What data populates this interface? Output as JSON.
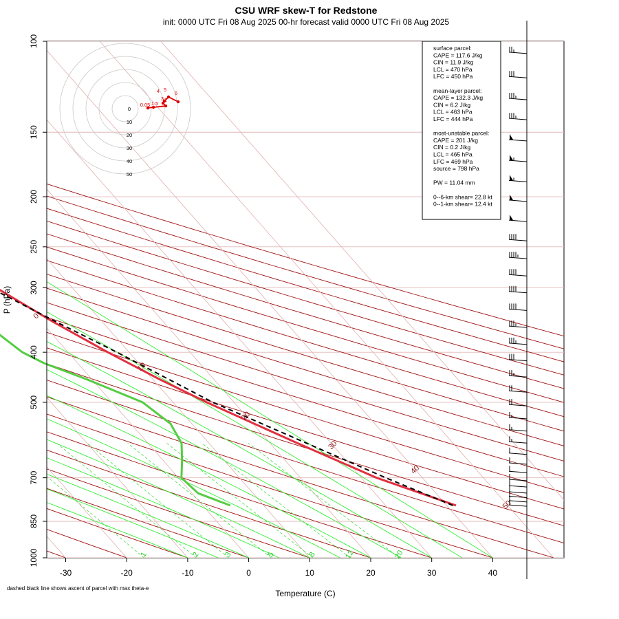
{
  "title": "CSU WRF skew-T for Redstone",
  "subtitle": "init: 0000 UTC Fri 08 Aug 2025     00-hr forecast valid 0000 UTC Fri 08 Aug 2025",
  "footnote": "dashed black line shows ascent of parcel with max theta-e",
  "chart_data": {
    "type": "line",
    "diagram": "skew-T log-P",
    "xlabel": "Temperature (C)",
    "ylabel": "P (hPa)",
    "x_ticks": [
      -30,
      -20,
      -10,
      0,
      10,
      20,
      30,
      40
    ],
    "y_ticks": [
      100,
      150,
      200,
      250,
      300,
      400,
      500,
      700,
      850,
      1000
    ],
    "xlim": [
      -33,
      46
    ],
    "ylim": [
      1000,
      100
    ],
    "y_scale": "log",
    "isotherm_labels": [
      -10,
      0,
      10,
      20,
      30,
      40,
      50
    ],
    "mixing_ratio_labels": [
      1,
      2,
      3,
      5,
      8,
      12,
      20
    ],
    "series": [
      {
        "name": "temperature",
        "color": "#e03040",
        "points": [
          {
            "p": 792,
            "t": 41.5
          },
          {
            "p": 700,
            "t": 32.5
          },
          {
            "p": 600,
            "t": 24.5
          },
          {
            "p": 500,
            "t": 15.5
          },
          {
            "p": 450,
            "t": 11.0
          },
          {
            "p": 400,
            "t": 6.5
          },
          {
            "p": 350,
            "t": 2.0
          },
          {
            "p": 300,
            "t": -2.5
          },
          {
            "p": 250,
            "t": -7.5
          },
          {
            "p": 225,
            "t": -10.5
          },
          {
            "p": 210,
            "t": -12.5
          },
          {
            "p": 200,
            "t": -14.0
          },
          {
            "p": 190,
            "t": -15.8
          },
          {
            "p": 175,
            "t": -18.5
          },
          {
            "p": 160,
            "t": -20.0
          },
          {
            "p": 150,
            "t": -21.5
          },
          {
            "p": 140,
            "t": -22.5
          },
          {
            "p": 130,
            "t": -24.0
          },
          {
            "p": 120,
            "t": -26.0
          },
          {
            "p": 110,
            "t": -28.5
          }
        ]
      },
      {
        "name": "dewpoint",
        "color": "#55cc44",
        "points": [
          {
            "p": 792,
            "t": 4.5
          },
          {
            "p": 750,
            "t": 1.0
          },
          {
            "p": 700,
            "t": 0.5
          },
          {
            "p": 650,
            "t": 3.0
          },
          {
            "p": 600,
            "t": 5.5
          },
          {
            "p": 550,
            "t": 6.5
          },
          {
            "p": 500,
            "t": 5.0
          },
          {
            "p": 450,
            "t": -1.0
          },
          {
            "p": 420,
            "t": -5.5
          },
          {
            "p": 400,
            "t": -7.5
          },
          {
            "p": 375,
            "t": -8.5
          },
          {
            "p": 350,
            "t": -9.5
          },
          {
            "p": 320,
            "t": -10.5
          },
          {
            "p": 300,
            "t": -12.0
          },
          {
            "p": 275,
            "t": -16.0
          },
          {
            "p": 250,
            "t": -20.0
          },
          {
            "p": 225,
            "t": -24.5
          },
          {
            "p": 200,
            "t": -29.5
          },
          {
            "p": 175,
            "t": -35.0
          }
        ]
      },
      {
        "name": "parcel",
        "color": "#000000",
        "dashed": true,
        "points": [
          {
            "p": 792,
            "t": 41.0
          },
          {
            "p": 700,
            "t": 34.0
          },
          {
            "p": 600,
            "t": 26.0
          },
          {
            "p": 500,
            "t": 16.5
          },
          {
            "p": 450,
            "t": 12.5
          },
          {
            "p": 400,
            "t": 8.0
          },
          {
            "p": 350,
            "t": 2.5
          },
          {
            "p": 300,
            "t": -3.5
          },
          {
            "p": 250,
            "t": -11.0
          },
          {
            "p": 200,
            "t": -20.0
          },
          {
            "p": 175,
            "t": -25.0
          }
        ]
      }
    ]
  },
  "info_panel": [
    {
      "header": "surface parcel:",
      "lines": [
        "CAPE = 117.6 J/kg",
        "CIN = 11.9 J/kg",
        "LCL = 470 hPa",
        "LFC = 450 hPa"
      ]
    },
    {
      "header": "mean-layer parcel:",
      "lines": [
        "CAPE = 132.3 J/kg",
        "CIN = 6.2 J/kg",
        "LCL = 463 hPa",
        "LFC = 444 hPa"
      ]
    },
    {
      "header": "most-unstable parcel:",
      "lines": [
        "CAPE = 201 J/kg",
        "CIN = 0.2 J/kg",
        "LCL = 465 hPa",
        "LFC = 469 hPa",
        "source = 798 hPa"
      ]
    },
    {
      "header": "",
      "lines": [
        "PW =  11.04 mm"
      ]
    },
    {
      "header": "",
      "lines": [
        "0--6-km shear= 22.8 kt",
        "0--1-km shear= 12.4 kt"
      ]
    }
  ],
  "hodograph": {
    "ring_labels": [
      "0",
      "10",
      "20",
      "30",
      "40",
      "50"
    ],
    "height_labels": [
      "0.05",
      "1.5",
      "2",
      "3",
      "4",
      "5",
      "6"
    ],
    "trace_color": "#dd0000"
  },
  "wind_barbs": [
    {
      "p": 105,
      "speed": 25
    },
    {
      "p": 117,
      "speed": 30
    },
    {
      "p": 129,
      "speed": 35
    },
    {
      "p": 141,
      "speed": 35
    },
    {
      "p": 155,
      "speed": 50
    },
    {
      "p": 170,
      "speed": 55
    },
    {
      "p": 186,
      "speed": 55
    },
    {
      "p": 203,
      "speed": 50
    },
    {
      "p": 222,
      "speed": 50
    },
    {
      "p": 242,
      "speed": 40
    },
    {
      "p": 262,
      "speed": 45
    },
    {
      "p": 283,
      "speed": 40
    },
    {
      "p": 305,
      "speed": 40
    },
    {
      "p": 330,
      "speed": 40
    },
    {
      "p": 356,
      "speed": 35
    },
    {
      "p": 384,
      "speed": 35
    },
    {
      "p": 413,
      "speed": 30
    },
    {
      "p": 444,
      "speed": 25
    },
    {
      "p": 475,
      "speed": 20
    },
    {
      "p": 505,
      "speed": 20
    },
    {
      "p": 535,
      "speed": 15
    },
    {
      "p": 565,
      "speed": 15
    },
    {
      "p": 596,
      "speed": 15
    },
    {
      "p": 627,
      "speed": 10
    },
    {
      "p": 655,
      "speed": 10
    },
    {
      "p": 680,
      "speed": 10
    },
    {
      "p": 705,
      "speed": 10
    },
    {
      "p": 725,
      "speed": 10
    },
    {
      "p": 745,
      "speed": 10
    },
    {
      "p": 760,
      "speed": 10
    },
    {
      "p": 775,
      "speed": 10
    },
    {
      "p": 790,
      "speed": 10
    }
  ]
}
